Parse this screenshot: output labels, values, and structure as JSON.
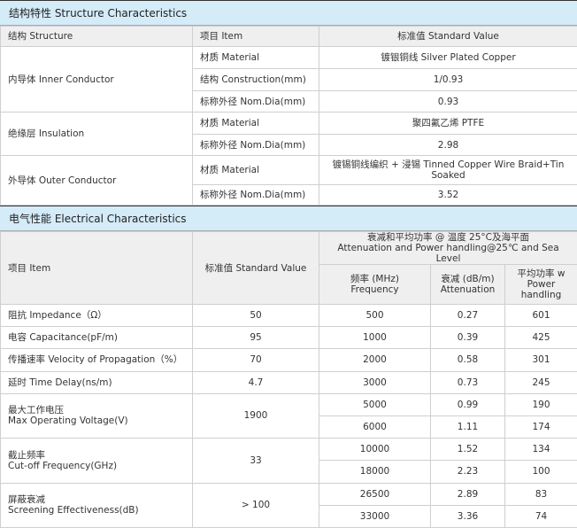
{
  "structure": {
    "title": "结构特性 Structure Characteristics",
    "headers": [
      "结构 Structure",
      "项目 Item",
      "标准值 Standard Value"
    ],
    "groups": [
      {
        "name": "内导体 Inner Conductor",
        "rows": [
          [
            "材质 Material",
            "镀银铜线 Silver Plated Copper"
          ],
          [
            "结构 Construction(mm)",
            "1/0.93"
          ],
          [
            "标称外径 Nom.Dia(mm)",
            "0.93"
          ]
        ]
      },
      {
        "name": "绝缘层 Insulation",
        "rows": [
          [
            "材质 Material",
            "聚四氟乙烯 PTFE"
          ],
          [
            "标称外径 Nom.Dia(mm)",
            "2.98"
          ]
        ]
      },
      {
        "name": "外导体 Outer Conductor",
        "rows": [
          [
            "材质 Material",
            "镀锡铜线编织 + 浸锡 Tinned Copper Wire Braid+Tin Soaked"
          ],
          [
            "标称外径 Nom.Dia(mm)",
            "3.52"
          ]
        ]
      }
    ]
  },
  "electrical": {
    "title": "电气性能 Electrical Characteristics",
    "header_item": "项目 Item",
    "header_value": "标准值 Standard Value",
    "header_group_cn": "衰减和平均功率 @ 温度 25°C及海平面",
    "header_group_en": "Attenuation and Power handling@25℃ and Sea Level",
    "sub_headers": [
      [
        "频率 (MHz)",
        "Frequency"
      ],
      [
        "衰减 (dB/m)",
        "Attenuation"
      ],
      [
        "平均功率 w",
        "Power",
        "handling"
      ]
    ],
    "params": [
      {
        "name": [
          "阻抗 Impedance（Ω）"
        ],
        "value": "50",
        "span": 1
      },
      {
        "name": [
          "电容 Capacitance(pF/m)"
        ],
        "value": "95",
        "span": 1
      },
      {
        "name": [
          "传播速率 Velocity of Propagation（%）"
        ],
        "value": "70",
        "span": 1
      },
      {
        "name": [
          "延时 Time Delay(ns/m)"
        ],
        "value": "4.7",
        "span": 1
      },
      {
        "name": [
          "最大工作电压",
          "Max Operating Voltage(V)"
        ],
        "value": "1900",
        "span": 2
      },
      {
        "name": [
          "截止频率",
          "Cut-off Frequency(GHz)"
        ],
        "value": "33",
        "span": 2
      },
      {
        "name": [
          "屏蔽衰减",
          "Screening Effectiveness(dB)"
        ],
        "value": "> 100",
        "span": 2
      }
    ],
    "attenuation": [
      [
        "500",
        "0.27",
        "601"
      ],
      [
        "1000",
        "0.39",
        "425"
      ],
      [
        "2000",
        "0.58",
        "301"
      ],
      [
        "3000",
        "0.73",
        "245"
      ],
      [
        "5000",
        "0.99",
        "190"
      ],
      [
        "6000",
        "1.11",
        "174"
      ],
      [
        "10000",
        "1.52",
        "134"
      ],
      [
        "18000",
        "2.23",
        "100"
      ],
      [
        "26500",
        "2.89",
        "83"
      ],
      [
        "33000",
        "3.36",
        "74"
      ]
    ]
  }
}
